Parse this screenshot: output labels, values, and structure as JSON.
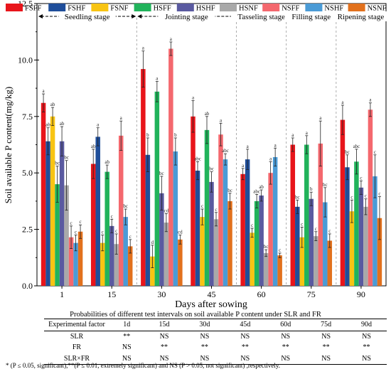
{
  "chart_data": {
    "type": "bar",
    "xlabel": "Days after sowing",
    "ylabel": "Soil available P content(mg/kg)",
    "ylim": [
      0,
      12.5
    ],
    "yticks": [
      "0.0",
      "2.5",
      "5.0",
      "7.5",
      "10.0",
      "12.5"
    ],
    "categories": [
      "1",
      "15",
      "30",
      "45",
      "60",
      "75",
      "90"
    ],
    "legend_position": "top",
    "stages": [
      {
        "label": "Seedling stage",
        "from": 0,
        "to": 1
      },
      {
        "label": "Jointing stage",
        "from": 2,
        "to": 3
      },
      {
        "label": "Tasseling stage",
        "from": 4,
        "to": 4
      },
      {
        "label": "Filling stage",
        "from": 5,
        "to": 5
      },
      {
        "label": "Ripening stage",
        "from": 6,
        "to": 6
      }
    ],
    "series": [
      {
        "name": "FSFF",
        "color": "#e8151b",
        "values": [
          8.1,
          5.4,
          9.6,
          7.5,
          4.95,
          6.25,
          7.35
        ],
        "errors": [
          0.4,
          0.65,
          0.8,
          0.7,
          0.25,
          0.3,
          0.65
        ],
        "letters": [
          "a",
          "ab",
          "a",
          "a",
          "a",
          "a",
          "a"
        ]
      },
      {
        "name": "FSHF",
        "color": "#1f4e9a",
        "values": [
          6.4,
          6.6,
          5.8,
          5.1,
          5.6,
          3.5,
          5.25
        ],
        "errors": [
          0.6,
          0.4,
          0.75,
          0.4,
          0.45,
          0.3,
          0.55
        ],
        "letters": [
          "ab",
          "a",
          "b",
          "abc",
          "a",
          "bc",
          "bc"
        ]
      },
      {
        "name": "FSNF",
        "color": "#f8c413",
        "values": [
          7.5,
          1.9,
          1.3,
          3.05,
          2.35,
          2.15,
          3.3
        ],
        "errors": [
          0.4,
          0.35,
          0.5,
          0.35,
          0.2,
          0.45,
          0.5
        ],
        "letters": [
          "ab",
          "c",
          "d",
          "c",
          "c",
          "c",
          "c"
        ]
      },
      {
        "name": "HSFF",
        "color": "#21b35b",
        "values": [
          4.5,
          5.05,
          8.6,
          6.9,
          3.75,
          6.25,
          5.5
        ],
        "errors": [
          0.8,
          0.3,
          0.45,
          0.6,
          0.3,
          0.4,
          0.55
        ],
        "letters": [
          "bc",
          "ab",
          "a",
          "ab",
          "abc",
          "a",
          "abc"
        ]
      },
      {
        "name": "HSHF",
        "color": "#5a5aa0",
        "values": [
          6.4,
          2.65,
          4.1,
          4.6,
          4.0,
          3.85,
          4.35
        ],
        "errors": [
          0.65,
          0.3,
          0.75,
          0.45,
          0.25,
          0.3,
          0.3
        ],
        "letters": [
          "ab",
          "c",
          "bc",
          "bc",
          "ab",
          "b",
          "c"
        ]
      },
      {
        "name": "HSNF",
        "color": "#a9a9a9",
        "values": [
          4.45,
          1.85,
          2.8,
          2.95,
          1.45,
          2.2,
          3.5
        ],
        "errors": [
          1.1,
          0.45,
          0.4,
          0.3,
          0.15,
          0.2,
          0.35
        ],
        "letters": [
          "bc",
          "c",
          "cd",
          "c",
          "bc",
          "c",
          "c"
        ]
      },
      {
        "name": "NSFF",
        "color": "#f4686e",
        "values": [
          2.15,
          6.65,
          10.5,
          6.7,
          5.0,
          6.3,
          7.8
        ],
        "errors": [
          0.5,
          0.65,
          0.3,
          0.5,
          0.5,
          1.0,
          0.3
        ],
        "letters": [
          "c",
          "a",
          "a",
          "a",
          "a",
          "a",
          "a"
        ]
      },
      {
        "name": "NSHF",
        "color": "#4b9bd6",
        "values": [
          1.9,
          3.05,
          5.95,
          5.6,
          5.7,
          3.7,
          4.85
        ],
        "errors": [
          0.35,
          0.35,
          0.6,
          0.25,
          0.4,
          0.65,
          0.95
        ],
        "letters": [
          "c",
          "bc",
          "b",
          "abc",
          "a",
          "bc",
          "c"
        ]
      },
      {
        "name": "NSNF",
        "color": "#e2711d",
        "values": [
          2.4,
          1.75,
          2.05,
          3.75,
          1.35,
          2.0,
          3.0
        ],
        "errors": [
          0.3,
          0.3,
          0.2,
          0.35,
          0.1,
          0.3,
          0.95
        ],
        "letters": [
          "c",
          "c",
          "cd",
          "bc",
          "c",
          "c",
          "c"
        ]
      }
    ]
  },
  "stats_table": {
    "caption": "Probabilities of different test intervals on soil available P content under SLR and FR",
    "headers": [
      "Experimental  factor",
      "1d",
      "15d",
      "30d",
      "45d",
      "60d",
      "75d",
      "90d"
    ],
    "rows": [
      [
        "SLR",
        "**",
        "NS",
        "NS",
        "NS",
        "NS",
        "NS",
        "NS"
      ],
      [
        "FR",
        "NS",
        "**",
        "**",
        "**",
        "**",
        "**",
        "**"
      ],
      [
        "SLR×FR",
        "NS",
        "NS",
        "NS",
        "NS",
        "NS",
        "NS",
        "NS"
      ]
    ]
  },
  "footnote": "* (P ≤ 0.05, significant),**(P ≤ 0.01, extremely significant) and NS (P > 0.05, not significant) ,respectively."
}
